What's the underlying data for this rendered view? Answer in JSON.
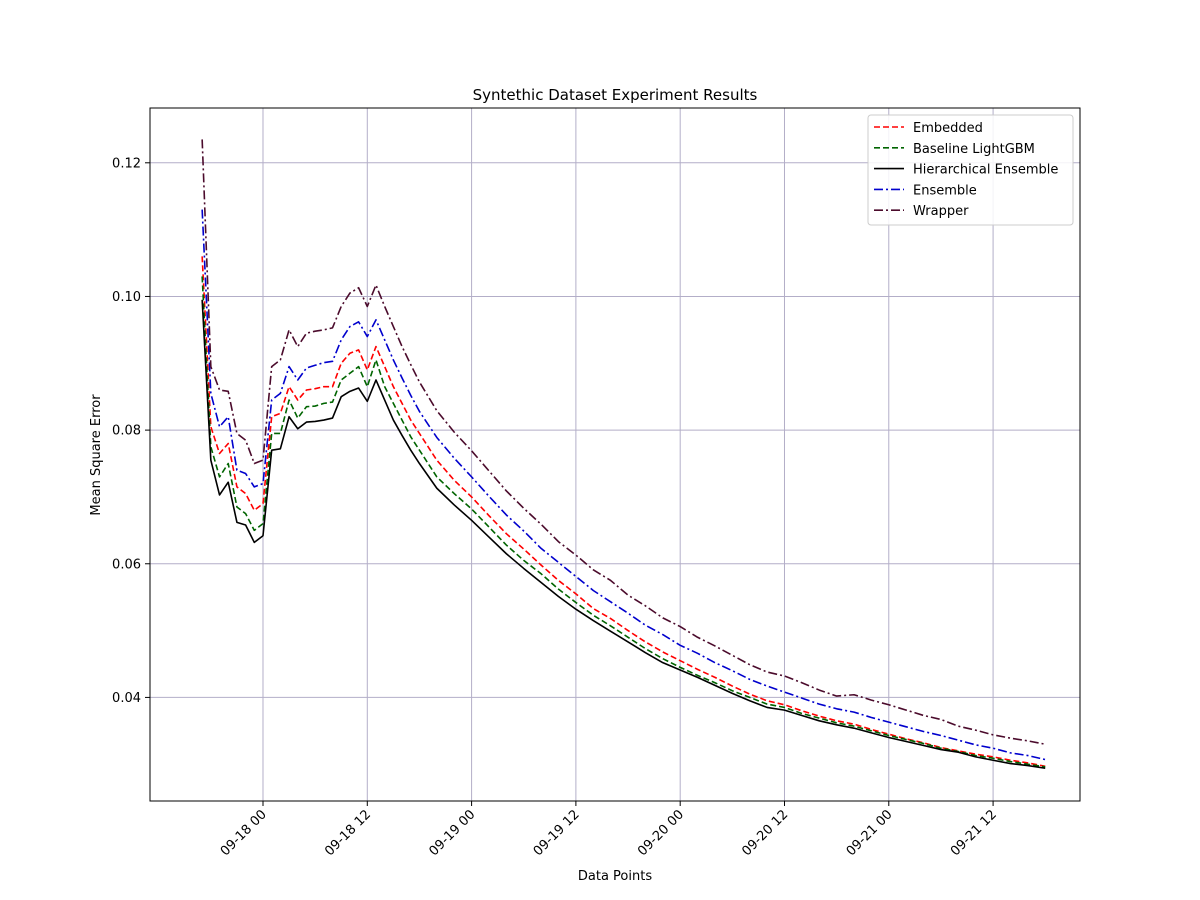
{
  "chart_data": {
    "type": "line",
    "title": "Syntethic Dataset Experiment Results",
    "xlabel": "Data Points",
    "ylabel": "Mean Square Error",
    "xlim": [
      -13,
      94
    ],
    "ylim": [
      0.0245,
      0.1282
    ],
    "grid": true,
    "legend_position": "top-right",
    "x_ticks": [
      {
        "x": 0,
        "label": "09-18 00"
      },
      {
        "x": 12,
        "label": "09-18 12"
      },
      {
        "x": 24,
        "label": "09-19 00"
      },
      {
        "x": 36,
        "label": "09-19 12"
      },
      {
        "x": 48,
        "label": "09-20 00"
      },
      {
        "x": 60,
        "label": "09-20 12"
      },
      {
        "x": 72,
        "label": "09-21 00"
      },
      {
        "x": 84,
        "label": "09-21 12"
      }
    ],
    "y_ticks": [
      {
        "y": 0.04,
        "label": "0.04"
      },
      {
        "y": 0.06,
        "label": "0.06"
      },
      {
        "y": 0.08,
        "label": "0.08"
      },
      {
        "y": 0.1,
        "label": "0.10"
      },
      {
        "y": 0.12,
        "label": "0.12"
      }
    ],
    "x": [
      -7,
      -6,
      -5,
      -4,
      -3,
      -2,
      -1,
      0,
      1,
      2,
      3,
      4,
      5,
      6,
      7,
      8,
      9,
      10,
      11,
      12,
      13,
      14,
      15,
      16,
      17,
      18,
      20,
      22,
      24,
      26,
      28,
      30,
      32,
      34,
      36,
      38,
      40,
      42,
      44,
      46,
      48,
      50,
      52,
      54,
      56,
      58,
      60,
      62,
      64,
      66,
      68,
      70,
      72,
      74,
      76,
      78,
      80,
      82,
      84,
      86,
      88,
      90
    ],
    "series": [
      {
        "name": "Embedded",
        "color": "#ff0000",
        "dash": "dashed",
        "values": [
          0.106,
          0.0805,
          0.0765,
          0.078,
          0.0715,
          0.0705,
          0.068,
          0.069,
          0.082,
          0.0825,
          0.0865,
          0.0845,
          0.086,
          0.0862,
          0.0865,
          0.0865,
          0.09,
          0.0915,
          0.092,
          0.089,
          0.0925,
          0.0895,
          0.0865,
          0.084,
          0.0815,
          0.0795,
          0.0755,
          0.0725,
          0.07,
          0.0672,
          0.0645,
          0.0622,
          0.0598,
          0.0575,
          0.0555,
          0.0533,
          0.0518,
          0.05,
          0.0483,
          0.0468,
          0.0455,
          0.0442,
          0.043,
          0.0417,
          0.0405,
          0.0395,
          0.0389,
          0.038,
          0.0372,
          0.0365,
          0.036,
          0.0352,
          0.0345,
          0.0338,
          0.0332,
          0.0325,
          0.032,
          0.0315,
          0.0311,
          0.0306,
          0.0302,
          0.0297
        ]
      },
      {
        "name": "Baseline LightGBM",
        "color": "#006400",
        "dash": "dashed",
        "values": [
          0.103,
          0.0775,
          0.073,
          0.075,
          0.0685,
          0.0675,
          0.065,
          0.066,
          0.0795,
          0.0795,
          0.0845,
          0.0818,
          0.0835,
          0.0836,
          0.084,
          0.0842,
          0.0875,
          0.0885,
          0.0895,
          0.0865,
          0.0905,
          0.0865,
          0.084,
          0.0815,
          0.079,
          0.077,
          0.073,
          0.0705,
          0.0682,
          0.0655,
          0.0628,
          0.0605,
          0.0585,
          0.0562,
          0.0542,
          0.0523,
          0.0507,
          0.049,
          0.0473,
          0.0458,
          0.0445,
          0.0433,
          0.0422,
          0.041,
          0.04,
          0.039,
          0.0385,
          0.0376,
          0.0369,
          0.0362,
          0.0357,
          0.035,
          0.0343,
          0.0337,
          0.0331,
          0.0324,
          0.0319,
          0.0313,
          0.0309,
          0.0304,
          0.03,
          0.0296
        ]
      },
      {
        "name": "Hierarchical Ensemble",
        "color": "#000000",
        "dash": "solid",
        "values": [
          0.0995,
          0.0755,
          0.0703,
          0.0722,
          0.0662,
          0.0658,
          0.0632,
          0.0642,
          0.077,
          0.0772,
          0.082,
          0.0802,
          0.0812,
          0.0813,
          0.0815,
          0.0818,
          0.085,
          0.0858,
          0.0863,
          0.0843,
          0.0875,
          0.0845,
          0.0815,
          0.0792,
          0.077,
          0.075,
          0.0713,
          0.0688,
          0.0665,
          0.064,
          0.0615,
          0.0593,
          0.0572,
          0.0551,
          0.0532,
          0.0515,
          0.0499,
          0.0483,
          0.0467,
          0.0452,
          0.0441,
          0.043,
          0.0418,
          0.0406,
          0.0395,
          0.0385,
          0.0381,
          0.0373,
          0.0365,
          0.0359,
          0.0354,
          0.0347,
          0.034,
          0.0334,
          0.0328,
          0.0322,
          0.0318,
          0.0311,
          0.0306,
          0.0301,
          0.0298,
          0.0294
        ]
      },
      {
        "name": "Ensemble",
        "color": "#0000cd",
        "dash": "dashdot",
        "values": [
          0.113,
          0.0855,
          0.0805,
          0.082,
          0.074,
          0.0735,
          0.0715,
          0.072,
          0.0845,
          0.0855,
          0.0895,
          0.0875,
          0.0893,
          0.0897,
          0.0901,
          0.0903,
          0.0935,
          0.0955,
          0.0962,
          0.094,
          0.0965,
          0.0935,
          0.0905,
          0.0878,
          0.0852,
          0.0828,
          0.0789,
          0.0758,
          0.073,
          0.0701,
          0.0673,
          0.0649,
          0.0623,
          0.0602,
          0.0581,
          0.056,
          0.0543,
          0.0526,
          0.0508,
          0.0494,
          0.0478,
          0.0466,
          0.0452,
          0.044,
          0.0427,
          0.0417,
          0.0408,
          0.0399,
          0.039,
          0.0383,
          0.0378,
          0.037,
          0.0363,
          0.0356,
          0.0349,
          0.0343,
          0.0336,
          0.0329,
          0.0324,
          0.0317,
          0.0313,
          0.0307
        ]
      },
      {
        "name": "Wrapper",
        "color": "#4b0b2c",
        "dash": "dashdot",
        "values": [
          0.1235,
          0.0895,
          0.086,
          0.0858,
          0.0795,
          0.0785,
          0.075,
          0.0755,
          0.0895,
          0.0905,
          0.095,
          0.0925,
          0.0945,
          0.0948,
          0.095,
          0.0953,
          0.0985,
          0.1005,
          0.1013,
          0.0985,
          0.1017,
          0.0985,
          0.0955,
          0.0925,
          0.0898,
          0.0872,
          0.0829,
          0.0797,
          0.0769,
          0.0739,
          0.0709,
          0.0683,
          0.0659,
          0.0633,
          0.0613,
          0.0591,
          0.0575,
          0.0553,
          0.0537,
          0.0519,
          0.0506,
          0.049,
          0.0477,
          0.0463,
          0.0449,
          0.0438,
          0.0432,
          0.0422,
          0.0411,
          0.0402,
          0.0404,
          0.0396,
          0.0389,
          0.0381,
          0.0373,
          0.0367,
          0.0357,
          0.0351,
          0.0344,
          0.0339,
          0.0335,
          0.033
        ]
      }
    ]
  }
}
